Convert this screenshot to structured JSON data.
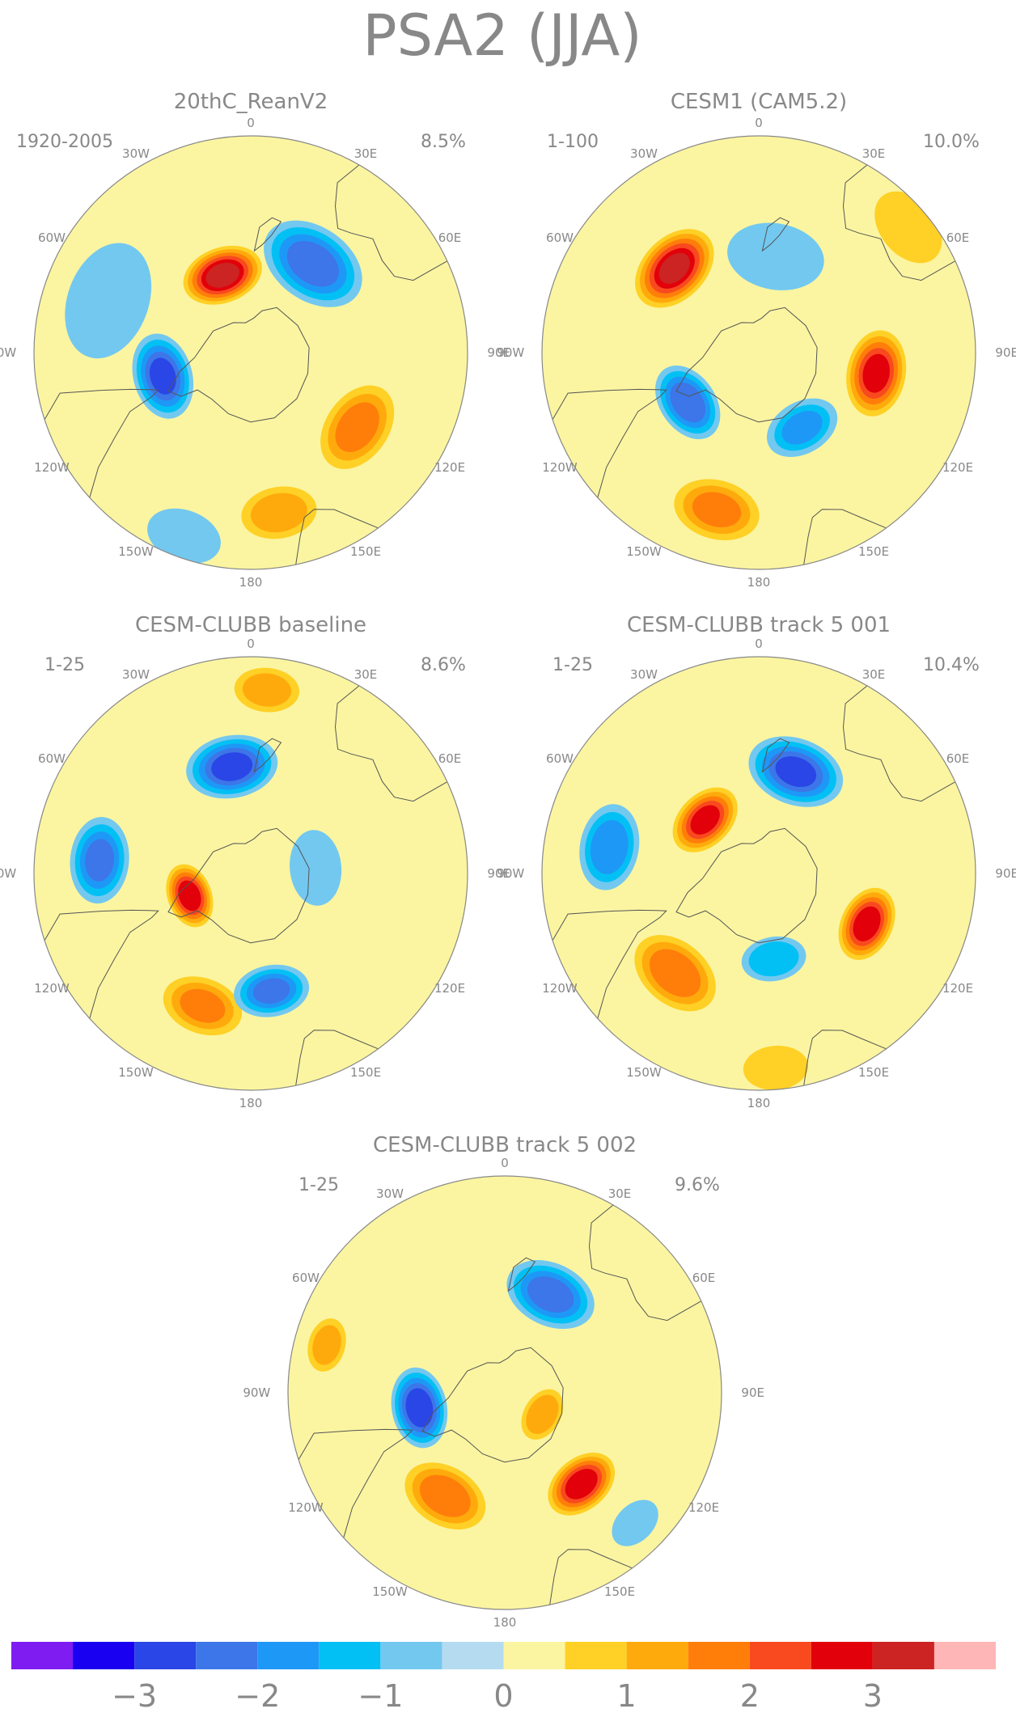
{
  "figure_title": "PSA2 (JJA)",
  "longitude_labels": [
    "0",
    "30E",
    "60E",
    "90E",
    "120E",
    "150E",
    "180",
    "150W",
    "120W",
    "90W",
    "60W",
    "30W"
  ],
  "panels": [
    {
      "title": "20thC_ReanV2",
      "period": "1920-2005",
      "variance": "8.5%",
      "anomalies": [
        {
          "lon": -75,
          "r": 0.42,
          "value": -2.5,
          "spread": 0.16
        },
        {
          "lon": -160,
          "r": 0.38,
          "value": 3.2,
          "spread": 0.15
        },
        {
          "lon": 145,
          "r": 0.5,
          "value": -2.2,
          "spread": 0.2
        },
        {
          "lon": 55,
          "r": 0.6,
          "value": 1.6,
          "spread": 0.17
        },
        {
          "lon": 10,
          "r": 0.75,
          "value": 1.2,
          "spread": 0.14
        },
        {
          "lon": -110,
          "r": 0.7,
          "value": -0.9,
          "spread": 0.22
        },
        {
          "lon": -20,
          "r": 0.9,
          "value": -0.7,
          "spread": 0.14
        }
      ]
    },
    {
      "title": "CESM1 (CAM5.2)",
      "period": "1-100",
      "variance": "10.0%",
      "anomalies": [
        {
          "lon": -55,
          "r": 0.4,
          "value": -2.3,
          "spread": 0.15
        },
        {
          "lon": -135,
          "r": 0.55,
          "value": 3.0,
          "spread": 0.17
        },
        {
          "lon": 80,
          "r": 0.55,
          "value": 2.6,
          "spread": 0.16
        },
        {
          "lon": 30,
          "r": 0.4,
          "value": -1.5,
          "spread": 0.14
        },
        {
          "lon": -15,
          "r": 0.75,
          "value": 1.5,
          "spread": 0.16
        },
        {
          "lon": 170,
          "r": 0.45,
          "value": -0.9,
          "spread": 0.18
        },
        {
          "lon": 130,
          "r": 0.9,
          "value": 0.5,
          "spread": 0.15
        }
      ]
    },
    {
      "title": "CESM-CLUBB baseline",
      "period": "1-25",
      "variance": "8.6%",
      "anomalies": [
        {
          "lon": -70,
          "r": 0.3,
          "value": 2.8,
          "spread": 0.12
        },
        {
          "lon": -20,
          "r": 0.65,
          "value": 1.5,
          "spread": 0.15
        },
        {
          "lon": 10,
          "r": 0.55,
          "value": -2.0,
          "spread": 0.14
        },
        {
          "lon": -95,
          "r": 0.7,
          "value": -2.0,
          "spread": 0.16
        },
        {
          "lon": -170,
          "r": 0.5,
          "value": -2.6,
          "spread": 0.17
        },
        {
          "lon": 175,
          "r": 0.85,
          "value": 1.2,
          "spread": 0.12
        },
        {
          "lon": 95,
          "r": 0.3,
          "value": -0.6,
          "spread": 0.14
        }
      ]
    },
    {
      "title": "CESM-CLUBB track 5 001",
      "period": "1-25",
      "variance": "10.4%",
      "anomalies": [
        {
          "lon": -40,
          "r": 0.6,
          "value": 1.8,
          "spread": 0.17
        },
        {
          "lon": 65,
          "r": 0.55,
          "value": 2.8,
          "spread": 0.14
        },
        {
          "lon": -135,
          "r": 0.35,
          "value": 2.6,
          "spread": 0.14
        },
        {
          "lon": 160,
          "r": 0.5,
          "value": -2.5,
          "spread": 0.18
        },
        {
          "lon": -100,
          "r": 0.7,
          "value": -1.8,
          "spread": 0.16
        },
        {
          "lon": 10,
          "r": 0.4,
          "value": -1.4,
          "spread": 0.12
        },
        {
          "lon": 5,
          "r": 0.9,
          "value": 0.6,
          "spread": 0.12
        }
      ]
    },
    {
      "title": "CESM-CLUBB track 5 002",
      "period": "1-25",
      "variance": "9.6%",
      "anomalies": [
        {
          "lon": -30,
          "r": 0.55,
          "value": 1.8,
          "spread": 0.16
        },
        {
          "lon": 40,
          "r": 0.55,
          "value": 2.8,
          "spread": 0.14
        },
        {
          "lon": 60,
          "r": 0.2,
          "value": 1.4,
          "spread": 0.1
        },
        {
          "lon": -80,
          "r": 0.4,
          "value": -2.8,
          "spread": 0.15
        },
        {
          "lon": 155,
          "r": 0.5,
          "value": -2.2,
          "spread": 0.17
        },
        {
          "lon": -105,
          "r": 0.85,
          "value": 1.2,
          "spread": 0.1
        },
        {
          "lon": 45,
          "r": 0.85,
          "value": -0.9,
          "spread": 0.1
        }
      ]
    }
  ],
  "colorbar": {
    "tick_labels": [
      "-3",
      "-2",
      "-1",
      "0",
      "1",
      "2",
      "3"
    ],
    "levels": [
      -3.5,
      -3,
      -2.5,
      -2,
      -1.5,
      -1,
      -0.5,
      0,
      0.5,
      1,
      1.5,
      2,
      2.5,
      3,
      3.5
    ],
    "colors": [
      "#7f1cf2",
      "#1a00f0",
      "#2a46e6",
      "#3c76e8",
      "#1e98f6",
      "#03c0f4",
      "#73c8f0",
      "#b5dbf0",
      "#fbf5a1",
      "#ffd025",
      "#ffaa0c",
      "#ff7e0a",
      "#f9491f",
      "#e2000a",
      "#cb2422",
      "#ffb6b6"
    ]
  },
  "colors": {
    "land_outline": "#555555",
    "circle": "#888888",
    "text": "#888888"
  }
}
